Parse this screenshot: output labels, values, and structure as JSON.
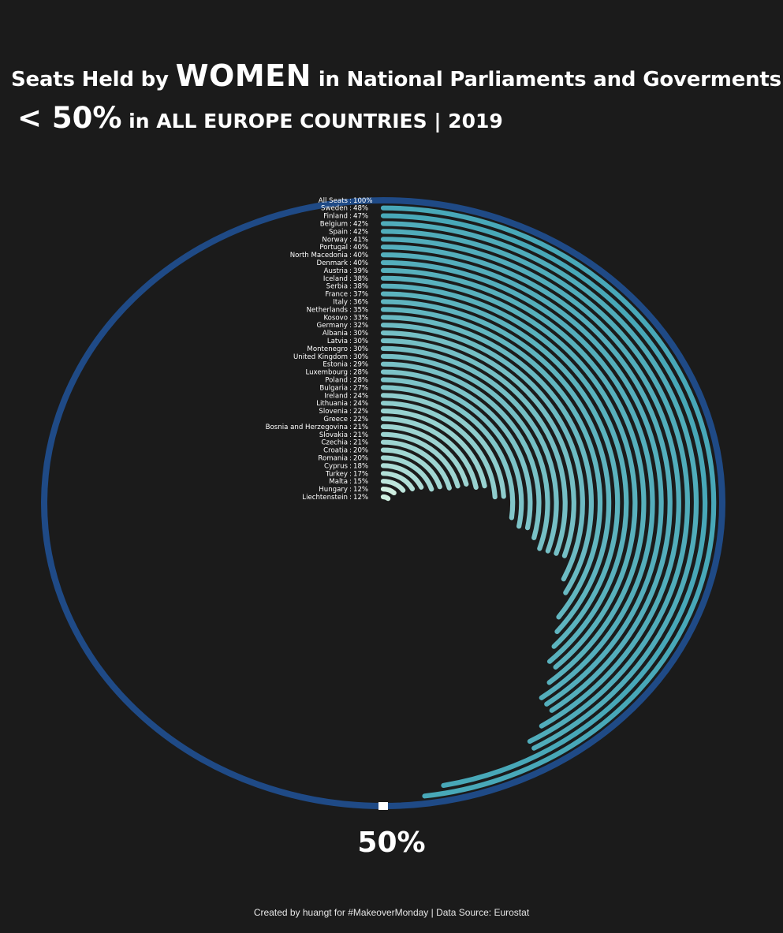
{
  "title": {
    "line1_pre": "Seats Held by ",
    "line1_big": "WOMEN",
    "line1_post": " in National Parliaments and Goverments",
    "line2_big": "< 50%",
    "line2_post": " in ALL EUROPE COUNTRIES | 2019"
  },
  "bottom_label": "50%",
  "footer": "Created by huangt for #MakeoverMonday | Data Source: Eurostat",
  "colors": {
    "background": "#1b1b1b",
    "reference_ring": "#1f4a86",
    "high": "#48a8b8",
    "low": "#cfeee0",
    "marker": "#ffffff",
    "text": "#ffffff"
  },
  "chart_data": {
    "type": "radial bar",
    "reference": {
      "label": "All Seats",
      "value": 100,
      "display": "100%"
    },
    "scale_max_percent": 100,
    "marker_label": "50%",
    "categories": [
      "Sweden",
      "Finland",
      "Belgium",
      "Spain",
      "Norway",
      "Portugal",
      "North Macedonia",
      "Denmark",
      "Austria",
      "Iceland",
      "Serbia",
      "France",
      "Italy",
      "Netherlands",
      "Kosovo",
      "Germany",
      "Albania",
      "Latvia",
      "Montenegro",
      "United Kingdom",
      "Estonia",
      "Luxembourg",
      "Poland",
      "Bulgaria",
      "Ireland",
      "Lithuania",
      "Slovenia",
      "Greece",
      "Bosnia and Herzegovina",
      "Slovakia",
      "Czechia",
      "Croatia",
      "Romania",
      "Cyprus",
      "Turkey",
      "Malta",
      "Hungary",
      "Liechtenstein"
    ],
    "values": [
      48,
      47,
      42,
      42,
      41,
      40,
      40,
      40,
      39,
      38,
      38,
      37,
      36,
      35,
      33,
      32,
      30,
      30,
      30,
      30,
      29,
      28,
      28,
      27,
      24,
      24,
      22,
      22,
      21,
      21,
      21,
      20,
      20,
      18,
      17,
      15,
      12,
      12
    ],
    "display": [
      "48%",
      "47%",
      "42%",
      "42%",
      "41%",
      "40%",
      "40%",
      "40%",
      "39%",
      "38%",
      "38%",
      "37%",
      "36%",
      "35%",
      "33%",
      "32%",
      "30%",
      "30%",
      "30%",
      "30%",
      "29%",
      "28%",
      "28%",
      "27%",
      "24%",
      "24%",
      "22%",
      "22%",
      "21%",
      "21%",
      "21%",
      "20%",
      "20%",
      "18%",
      "17%",
      "15%",
      "12%",
      "12%"
    ]
  }
}
